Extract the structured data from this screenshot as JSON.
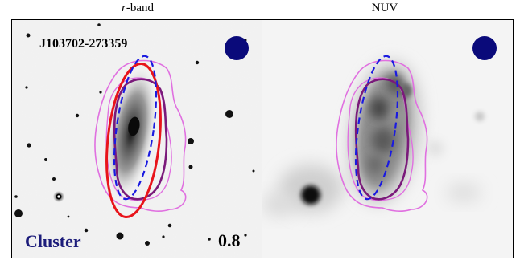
{
  "labels": {
    "left_prefix": "r",
    "left_suffix": "-band",
    "right": "NUV"
  },
  "object_id": "J103702-273359",
  "environment": "Cluster",
  "ratio": "0.8",
  "colors": {
    "beam": "#0a0a7a",
    "ellipse_red": "#e8141b",
    "ellipse_blue": "#1a1ae0",
    "contour_purple": "#7a1a7a",
    "contour_violet": "#e070e0",
    "env_text": "#1c1c7a"
  }
}
